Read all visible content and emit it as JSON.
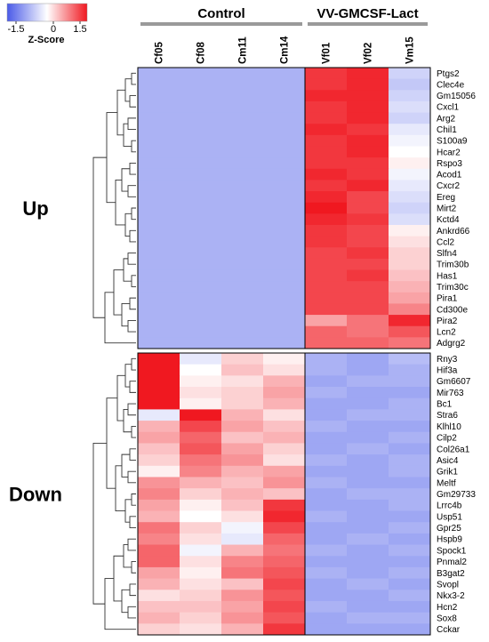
{
  "chart_data": {
    "type": "heatmap",
    "colorbar": {
      "title": "Z-Score",
      "ticks": [
        "-1.5",
        "0",
        "1.5"
      ],
      "range": [
        -1.5,
        1.5
      ],
      "low_color": "#4a5ae8",
      "mid_color": "#ffffff",
      "high_color": "#f01820"
    },
    "groups": [
      {
        "name": "Control",
        "columns": [
          "Cf05",
          "Cf08",
          "Cm11",
          "Cm14"
        ]
      },
      {
        "name": "VV-GMCSF-Lact",
        "columns": [
          "Vf01",
          "Vf02",
          "Vm15"
        ]
      }
    ],
    "columns": [
      "Cf05",
      "Cf08",
      "Cm11",
      "Cm14",
      "Vf01",
      "Vf02",
      "Vm15"
    ],
    "clusters": [
      {
        "name": "Up",
        "rows": [
          "Ptgs2",
          "Clec4e",
          "Gm15056",
          "Cxcl1",
          "Arg2",
          "Chil1",
          "S100a9",
          "Hcar2",
          "Rspo3",
          "Acod1",
          "Cxcr2",
          "Ereg",
          "Mirt2",
          "Kctd4",
          "Ankrd66",
          "Ccl2",
          "Slfn4",
          "Trim30b",
          "Has1",
          "Trim30c",
          "Pira1",
          "Cd300e",
          "Pira2",
          "Lcn2",
          "Adgrg2"
        ],
        "values": [
          [
            -0.7,
            -0.7,
            -0.7,
            -0.7,
            1.3,
            1.4,
            -0.4
          ],
          [
            -0.7,
            -0.7,
            -0.7,
            -0.7,
            1.3,
            1.4,
            -0.5
          ],
          [
            -0.7,
            -0.7,
            -0.7,
            -0.7,
            1.4,
            1.4,
            -0.4
          ],
          [
            -0.7,
            -0.7,
            -0.7,
            -0.7,
            1.3,
            1.4,
            -0.3
          ],
          [
            -0.7,
            -0.7,
            -0.7,
            -0.7,
            1.3,
            1.4,
            -0.4
          ],
          [
            -0.7,
            -0.7,
            -0.7,
            -0.7,
            1.4,
            1.3,
            -0.2
          ],
          [
            -0.7,
            -0.7,
            -0.7,
            -0.7,
            1.3,
            1.4,
            -0.1
          ],
          [
            -0.7,
            -0.7,
            -0.7,
            -0.7,
            1.3,
            1.4,
            0.0
          ],
          [
            -0.7,
            -0.7,
            -0.7,
            -0.7,
            1.3,
            1.3,
            0.1
          ],
          [
            -0.7,
            -0.7,
            -0.7,
            -0.7,
            1.4,
            1.3,
            -0.1
          ],
          [
            -0.7,
            -0.7,
            -0.7,
            -0.7,
            1.3,
            1.4,
            -0.2
          ],
          [
            -0.7,
            -0.7,
            -0.7,
            -0.7,
            1.4,
            1.2,
            -0.3
          ],
          [
            -0.7,
            -0.7,
            -0.7,
            -0.7,
            1.5,
            1.2,
            -0.4
          ],
          [
            -0.7,
            -0.7,
            -0.7,
            -0.7,
            1.4,
            1.3,
            -0.3
          ],
          [
            -0.7,
            -0.7,
            -0.7,
            -0.7,
            1.3,
            1.2,
            0.1
          ],
          [
            -0.7,
            -0.7,
            -0.7,
            -0.7,
            1.3,
            1.2,
            0.2
          ],
          [
            -0.7,
            -0.7,
            -0.7,
            -0.7,
            1.2,
            1.3,
            0.3
          ],
          [
            -0.7,
            -0.7,
            -0.7,
            -0.7,
            1.2,
            1.2,
            0.3
          ],
          [
            -0.7,
            -0.7,
            -0.7,
            -0.7,
            1.2,
            1.3,
            0.4
          ],
          [
            -0.7,
            -0.7,
            -0.7,
            -0.7,
            1.2,
            1.2,
            0.5
          ],
          [
            -0.7,
            -0.7,
            -0.7,
            -0.7,
            1.2,
            1.2,
            0.6
          ],
          [
            -0.7,
            -0.7,
            -0.7,
            -0.7,
            1.2,
            1.2,
            0.8
          ],
          [
            -0.7,
            -0.7,
            -0.7,
            -0.7,
            0.6,
            0.9,
            1.4
          ],
          [
            -0.7,
            -0.7,
            -0.7,
            -0.7,
            1.0,
            0.9,
            1.1
          ],
          [
            -0.7,
            -0.7,
            -0.7,
            -0.7,
            1.0,
            1.0,
            0.9
          ]
        ]
      },
      {
        "name": "Down",
        "rows": [
          "Rny3",
          "Hif3a",
          "Gm6607",
          "Mir763",
          "Bc1",
          "Stra6",
          "Klhl10",
          "Cilp2",
          "Col26a1",
          "Asic4",
          "Grik1",
          "Meltf",
          "Gm29733",
          "Lrrc4b",
          "Usp51",
          "Gpr25",
          "Hspb9",
          "Spock1",
          "Pnmal2",
          "B3gat2",
          "Svopl",
          "Nkx3-2",
          "Hcn2",
          "Sox8",
          "Cckar"
        ],
        "values": [
          [
            1.5,
            -0.2,
            0.3,
            0.1,
            -0.7,
            -0.8,
            -0.6
          ],
          [
            1.5,
            0.0,
            0.4,
            0.2,
            -0.7,
            -0.8,
            -0.7
          ],
          [
            1.5,
            0.1,
            0.2,
            0.5,
            -0.8,
            -0.7,
            -0.7
          ],
          [
            1.5,
            0.2,
            0.3,
            0.6,
            -0.7,
            -0.8,
            -0.8
          ],
          [
            1.5,
            0.1,
            0.3,
            0.5,
            -0.8,
            -0.8,
            -0.7
          ],
          [
            -0.2,
            1.5,
            0.5,
            0.2,
            -0.8,
            -0.7,
            -0.7
          ],
          [
            0.5,
            1.2,
            0.6,
            0.4,
            -0.7,
            -0.8,
            -0.8
          ],
          [
            0.6,
            1.0,
            0.4,
            0.5,
            -0.8,
            -0.8,
            -0.7
          ],
          [
            0.4,
            1.1,
            0.6,
            0.3,
            -0.8,
            -0.7,
            -0.8
          ],
          [
            0.3,
            0.9,
            0.7,
            0.2,
            -0.7,
            -0.8,
            -0.7
          ],
          [
            0.1,
            0.8,
            0.5,
            0.6,
            -0.8,
            -0.8,
            -0.7
          ],
          [
            0.7,
            0.5,
            0.4,
            0.7,
            -0.7,
            -0.8,
            -0.8
          ],
          [
            0.8,
            0.3,
            0.5,
            0.4,
            -0.8,
            -0.7,
            -0.7
          ],
          [
            0.6,
            0.1,
            0.4,
            1.3,
            -0.8,
            -0.8,
            -0.7
          ],
          [
            0.5,
            0.0,
            0.2,
            1.4,
            -0.7,
            -0.8,
            -0.8
          ],
          [
            0.9,
            0.3,
            -0.1,
            1.2,
            -0.8,
            -0.8,
            -0.7
          ],
          [
            0.8,
            0.2,
            -0.2,
            1.0,
            -0.8,
            -0.7,
            -0.8
          ],
          [
            1.0,
            -0.1,
            0.5,
            0.9,
            -0.7,
            -0.8,
            -0.7
          ],
          [
            1.0,
            0.2,
            0.8,
            1.0,
            -0.8,
            -0.8,
            -0.8
          ],
          [
            0.6,
            0.1,
            0.9,
            1.1,
            -0.7,
            -0.8,
            -0.7
          ],
          [
            0.5,
            0.2,
            0.4,
            1.2,
            -0.8,
            -0.7,
            -0.8
          ],
          [
            0.2,
            0.3,
            0.7,
            1.1,
            -0.8,
            -0.8,
            -0.7
          ],
          [
            0.4,
            0.4,
            0.6,
            1.2,
            -0.7,
            -0.8,
            -0.8
          ],
          [
            0.5,
            0.3,
            0.7,
            1.1,
            -0.8,
            -0.7,
            -0.7
          ],
          [
            0.3,
            0.2,
            0.5,
            1.3,
            -0.8,
            -0.8,
            -0.8
          ]
        ]
      }
    ]
  }
}
